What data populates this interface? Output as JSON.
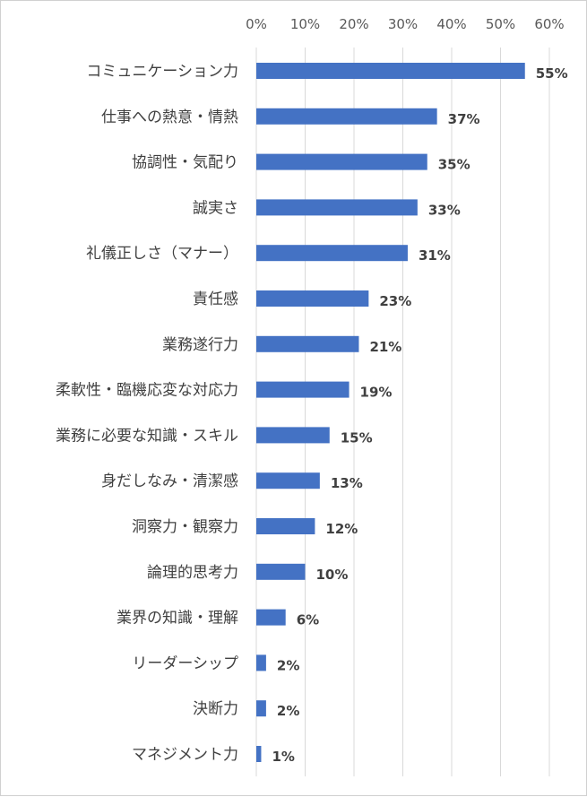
{
  "chart_data": {
    "type": "bar",
    "orientation": "horizontal",
    "categories": [
      "コミュニケーション力",
      "仕事への熱意・情熱",
      "協調性・気配り",
      "誠実さ",
      "礼儀正しさ（マナー）",
      "責任感",
      "業務遂行力",
      "柔軟性・臨機応変な対応力",
      "業務に必要な知識・スキル",
      "身だしなみ・清潔感",
      "洞察力・観察力",
      "論理的思考力",
      "業界の知識・理解",
      "リーダーシップ",
      "決断力",
      "マネジメント力"
    ],
    "values": [
      55,
      37,
      35,
      33,
      31,
      23,
      21,
      19,
      15,
      13,
      12,
      10,
      6,
      2,
      2,
      1
    ],
    "value_labels": [
      "55%",
      "37%",
      "35%",
      "33%",
      "31%",
      "23%",
      "21%",
      "19%",
      "15%",
      "13%",
      "12%",
      "10%",
      "6%",
      "2%",
      "2%",
      "1%"
    ],
    "x_ticks": [
      0,
      10,
      20,
      30,
      40,
      50,
      60
    ],
    "x_tick_labels": [
      "0%",
      "10%",
      "20%",
      "30%",
      "40%",
      "50%",
      "60%"
    ],
    "xlim": [
      0,
      60
    ],
    "x_axis_position": "top",
    "grid": true,
    "bar_color": "#4472C4",
    "grid_color": "#d9d9d9",
    "title": "",
    "xlabel": "",
    "ylabel": ""
  }
}
